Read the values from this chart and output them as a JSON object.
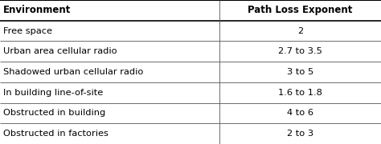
{
  "headers": [
    "Environment",
    "Path Loss Exponent"
  ],
  "rows": [
    [
      "Free space",
      "2"
    ],
    [
      "Urban area cellular radio",
      "2.7 to 3.5"
    ],
    [
      "Shadowed urban cellular radio",
      "3 to 5"
    ],
    [
      "In building line-of-site",
      "1.6 to 1.8"
    ],
    [
      "Obstructed in building",
      "4 to 6"
    ],
    [
      "Obstructed in factories",
      "2 to 3"
    ]
  ],
  "col_split": 0.575,
  "header_bg": "#ffffff",
  "row_bg": "#ffffff",
  "border_color": "#555555",
  "header_border_color": "#000000",
  "text_color": "#000000",
  "header_fontsize": 8.5,
  "row_fontsize": 8.2,
  "fig_width": 4.74,
  "fig_height": 1.8,
  "dpi": 100
}
